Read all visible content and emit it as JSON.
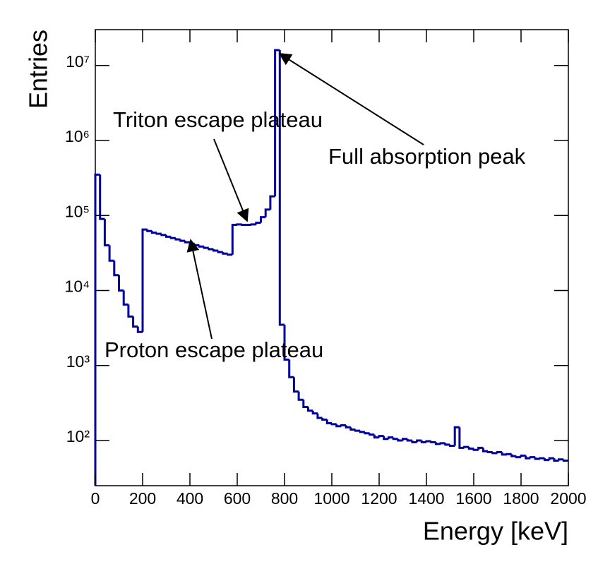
{
  "chart_data": {
    "type": "histogram",
    "xlabel": "Energy [keV]",
    "ylabel": "Entries",
    "log_y": true,
    "color": "#000099",
    "bins": [
      0,
      20,
      40,
      60,
      80,
      100,
      120,
      140,
      160,
      180,
      200,
      220,
      240,
      260,
      280,
      300,
      320,
      340,
      360,
      380,
      400,
      420,
      440,
      460,
      480,
      500,
      520,
      540,
      560,
      580,
      600,
      620,
      640,
      660,
      680,
      700,
      720,
      740,
      760,
      780,
      800,
      820,
      840,
      860,
      880,
      900,
      920,
      940,
      960,
      980,
      1000,
      1020,
      1040,
      1060,
      1080,
      1100,
      1120,
      1140,
      1160,
      1180,
      1200,
      1220,
      1240,
      1260,
      1280,
      1300,
      1320,
      1340,
      1360,
      1380,
      1400,
      1420,
      1440,
      1460,
      1480,
      1500,
      1520,
      1540,
      1560,
      1580,
      1600,
      1620,
      1640,
      1660,
      1680,
      1700,
      1720,
      1740,
      1760,
      1780,
      1800,
      1820,
      1840,
      1860,
      1880,
      1900,
      1920,
      1940,
      1960,
      1980,
      2000
    ],
    "values": [
      350000,
      90000,
      40000,
      25000,
      16000,
      10000,
      6500,
      4500,
      3300,
      2800,
      65000,
      62000,
      59000,
      57000,
      55000,
      52000,
      50000,
      48000,
      46000,
      44000,
      42000,
      40000,
      38500,
      37000,
      35500,
      34000,
      32500,
      31000,
      30000,
      75000,
      76000,
      75000,
      75000,
      76000,
      80000,
      95000,
      120000,
      180000,
      16000000,
      3500,
      1200,
      700,
      450,
      350,
      280,
      250,
      230,
      200,
      190,
      170,
      165,
      155,
      160,
      150,
      140,
      135,
      130,
      125,
      120,
      110,
      115,
      105,
      110,
      105,
      100,
      105,
      100,
      95,
      100,
      95,
      98,
      95,
      90,
      92,
      88,
      85,
      150,
      80,
      82,
      78,
      75,
      80,
      72,
      70,
      68,
      70,
      65,
      66,
      62,
      60,
      63,
      58,
      60,
      57,
      58,
      55,
      58,
      54,
      56,
      54
    ],
    "xlim": [
      0,
      2000
    ],
    "xticks": [
      0,
      200,
      400,
      600,
      800,
      1000,
      1200,
      1400,
      1600,
      1800,
      2000
    ],
    "ylim": [
      25,
      30000000
    ],
    "yticks": [
      {
        "value": 100,
        "label": "10²"
      },
      {
        "value": 1000,
        "label": "10³"
      },
      {
        "value": 10000,
        "label": "10⁴"
      },
      {
        "value": 100000,
        "label": "10⁵"
      },
      {
        "value": 1000000,
        "label": "10⁶"
      },
      {
        "value": 10000000,
        "label": "10⁷"
      }
    ],
    "annotations": [
      "Triton escape plateau",
      "Full absorption peak",
      "Proton escape plateau"
    ]
  }
}
